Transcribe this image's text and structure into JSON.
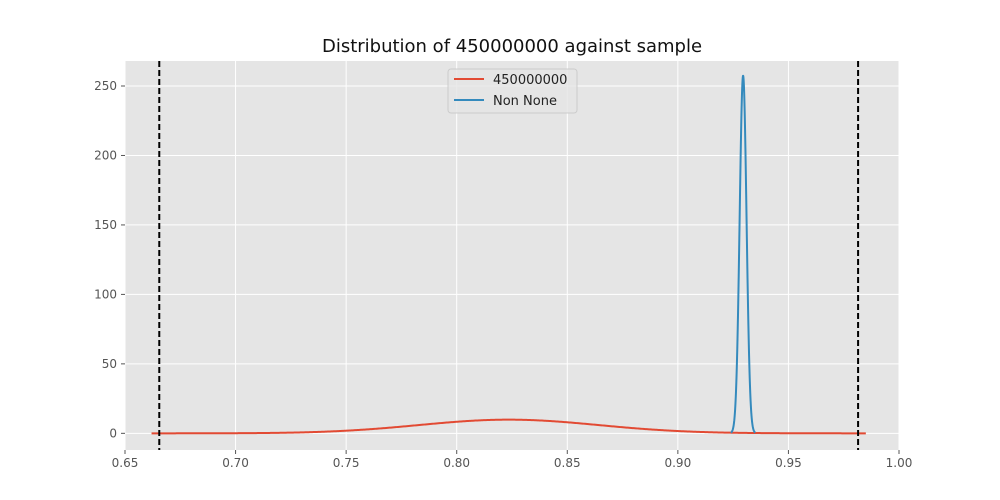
{
  "chart_data": {
    "type": "line",
    "title": "Distribution of 450000000 against sample",
    "xlabel": "",
    "ylabel": "",
    "xlim": [
      0.65,
      1.0
    ],
    "ylim": [
      -12,
      268
    ],
    "x_ticks": [
      0.65,
      0.7,
      0.75,
      0.8,
      0.85,
      0.9,
      0.95,
      1.0
    ],
    "x_tick_labels": [
      "0.65",
      "0.70",
      "0.75",
      "0.80",
      "0.85",
      "0.90",
      "0.95",
      "1.00"
    ],
    "y_ticks": [
      0,
      50,
      100,
      150,
      200,
      250
    ],
    "y_tick_labels": [
      "0",
      "50",
      "100",
      "150",
      "200",
      "250"
    ],
    "grid": true,
    "legend_position": "top-center",
    "background": "#e5e5e5",
    "series": [
      {
        "name": "450000000",
        "kind": "normal_pdf",
        "color": "#e24a33",
        "mean": 0.8235,
        "std": 0.0405,
        "x_range": [
          0.662,
          0.985
        ]
      },
      {
        "name": "Non None",
        "kind": "normal_pdf",
        "color": "#348abd",
        "mean": 0.9295,
        "std": 0.00155,
        "x_range": [
          0.924,
          0.935
        ]
      }
    ],
    "vertical_lines": [
      {
        "x": 0.6655,
        "color": "#000000",
        "style": "dashed"
      },
      {
        "x": 0.9815,
        "color": "#000000",
        "style": "dashed"
      }
    ]
  }
}
